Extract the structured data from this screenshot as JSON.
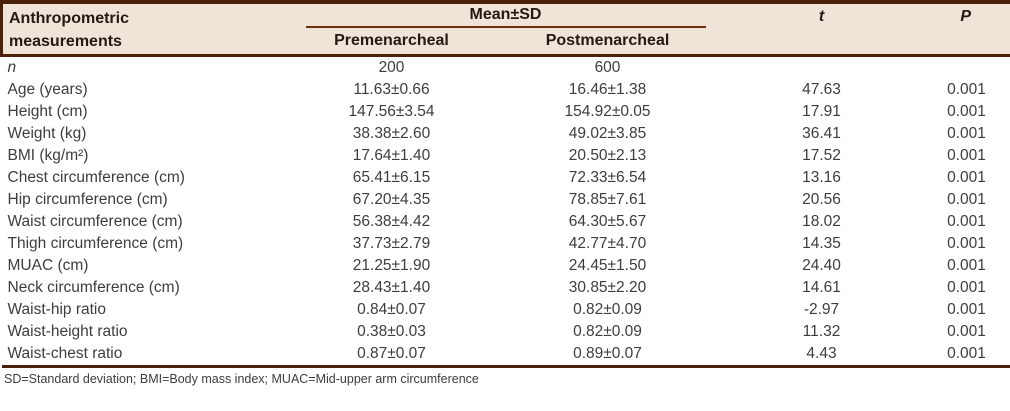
{
  "colors": {
    "accent_dark_brown": "#4a2108",
    "thin_rule_brown": "#6e2f10",
    "header_background": "#f0e3d8",
    "body_text": "#3d3d3d"
  },
  "table": {
    "header": {
      "col_label": "Anthropometric measurements",
      "mean_sd": "Mean±SD",
      "sub_pre": "Premenarcheal",
      "sub_post": "Postmenarcheal",
      "t": "t",
      "p": "P"
    },
    "rows": [
      {
        "label": "n",
        "italic_label": true,
        "pre": "200",
        "post": "600",
        "t": "",
        "p": ""
      },
      {
        "label": "Age (years)",
        "pre": "11.63±0.66",
        "post": "16.46±1.38",
        "t": "47.63",
        "p": "0.001"
      },
      {
        "label": "Height (cm)",
        "pre": "147.56±3.54",
        "post": "154.92±0.05",
        "t": "17.91",
        "p": "0.001"
      },
      {
        "label": "Weight (kg)",
        "pre": "38.38±2.60",
        "post": "49.02±3.85",
        "t": "36.41",
        "p": "0.001"
      },
      {
        "label": "BMI (kg/m²)",
        "pre": "17.64±1.40",
        "post": "20.50±2.13",
        "t": "17.52",
        "p": "0.001"
      },
      {
        "label": "Chest circumference (cm)",
        "pre": "65.41±6.15",
        "post": "72.33±6.54",
        "t": "13.16",
        "p": "0.001"
      },
      {
        "label": "Hip circumference (cm)",
        "pre": "67.20±4.35",
        "post": "78.85±7.61",
        "t": "20.56",
        "p": "0.001"
      },
      {
        "label": "Waist circumference (cm)",
        "pre": "56.38±4.42",
        "post": "64.30±5.67",
        "t": "18.02",
        "p": "0.001"
      },
      {
        "label": "Thigh circumference (cm)",
        "pre": "37.73±2.79",
        "post": "42.77±4.70",
        "t": "14.35",
        "p": "0.001"
      },
      {
        "label": "MUAC (cm)",
        "pre": "21.25±1.90",
        "post": "24.45±1.50",
        "t": "24.40",
        "p": "0.001"
      },
      {
        "label": "Neck circumference (cm)",
        "pre": "28.43±1.40",
        "post": "30.85±2.20",
        "t": "14.61",
        "p": "0.001"
      },
      {
        "label": "Waist-hip ratio",
        "pre": "0.84±0.07",
        "post": "0.82±0.09",
        "t": "-2.97",
        "p": "0.001"
      },
      {
        "label": "Waist-height ratio",
        "pre": "0.38±0.03",
        "post": "0.82±0.09",
        "t": "11.32",
        "p": "0.001"
      },
      {
        "label": "Waist-chest ratio",
        "pre": "0.87±0.07",
        "post": "0.89±0.07",
        "t": "4.43",
        "p": "0.001"
      }
    ],
    "footnote": "SD=Standard deviation; BMI=Body mass index; MUAC=Mid-upper arm circumference"
  }
}
